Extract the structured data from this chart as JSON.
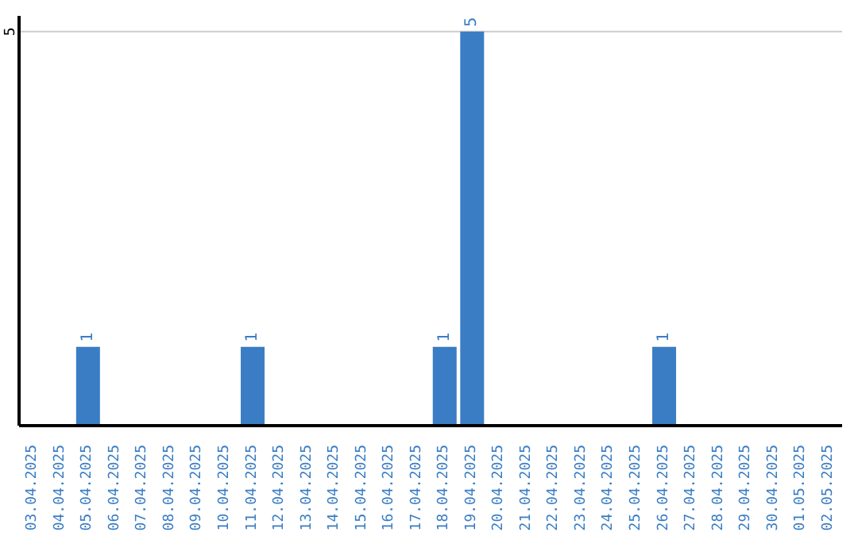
{
  "chart_data": {
    "type": "bar",
    "categories": [
      "03.04.2025",
      "04.04.2025",
      "05.04.2025",
      "06.04.2025",
      "07.04.2025",
      "08.04.2025",
      "09.04.2025",
      "10.04.2025",
      "11.04.2025",
      "12.04.2025",
      "13.04.2025",
      "14.04.2025",
      "15.04.2025",
      "16.04.2025",
      "17.04.2025",
      "18.04.2025",
      "19.04.2025",
      "20.04.2025",
      "21.04.2025",
      "22.04.2025",
      "23.04.2025",
      "24.04.2025",
      "25.04.2025",
      "26.04.2025",
      "27.04.2025",
      "28.04.2025",
      "29.04.2025",
      "30.04.2025",
      "01.05.2025",
      "02.05.2025"
    ],
    "values": [
      0,
      0,
      1,
      0,
      0,
      0,
      0,
      0,
      1,
      0,
      0,
      0,
      0,
      0,
      0,
      1,
      5,
      0,
      0,
      0,
      0,
      0,
      0,
      1,
      0,
      0,
      0,
      0,
      0,
      0
    ],
    "value_labels": [
      null,
      null,
      "1",
      null,
      null,
      null,
      null,
      null,
      "1",
      null,
      null,
      null,
      null,
      null,
      null,
      "1",
      "5",
      null,
      null,
      null,
      null,
      null,
      null,
      "1",
      null,
      null,
      null,
      null,
      null,
      null
    ],
    "color": "#3a7dc4",
    "ylim": [
      0,
      5.2
    ],
    "yticks": [
      5
    ],
    "grid": "y"
  }
}
